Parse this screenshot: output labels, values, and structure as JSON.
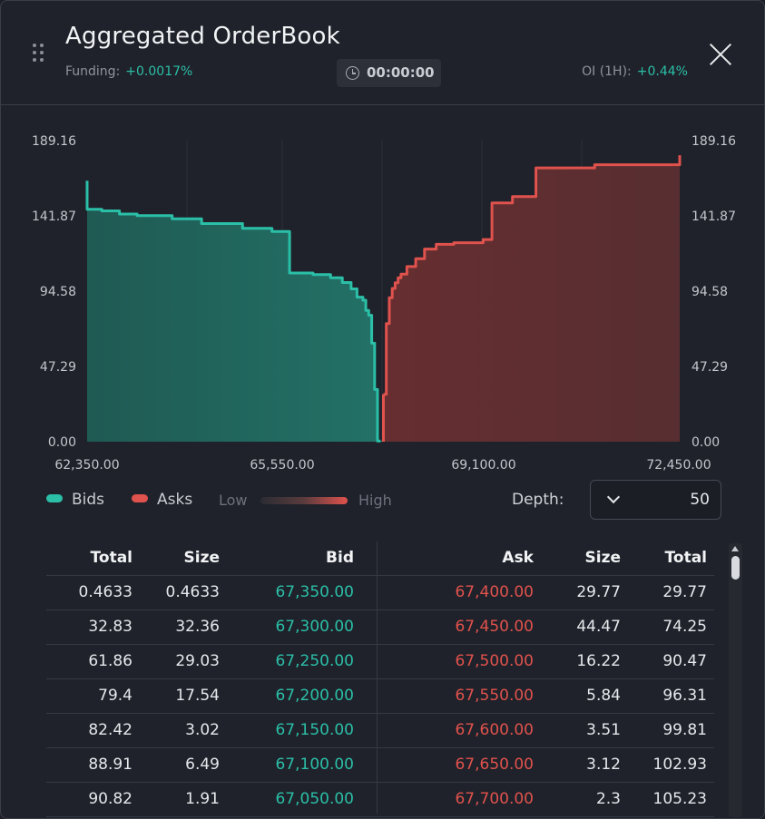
{
  "header": {
    "title": "Aggregated OrderBook",
    "funding_label": "Funding:",
    "funding_value": "+0.0017%",
    "timer": "00:00:00",
    "oi_label": "OI (1H):",
    "oi_value": "+0.44%",
    "close_icon": "close-icon",
    "drag_icon": "drag-handle-icon"
  },
  "colors": {
    "bids": "#2bbfa8",
    "asks": "#e0524d",
    "background": "#1f222a"
  },
  "chart_data": {
    "type": "area",
    "x_ticks": [
      "62,350.00",
      "65,550.00",
      "69,100.00",
      "72,450.00"
    ],
    "y_ticks": [
      "189.16",
      "141.87",
      "94.58",
      "47.29",
      "0.00"
    ],
    "xlim": [
      62350,
      72450
    ],
    "ylim": [
      0,
      189.16
    ],
    "grid": true,
    "series": [
      {
        "name": "Bids",
        "points": [
          [
            67350,
            0.4633
          ],
          [
            67300,
            32.83
          ],
          [
            67250,
            61.86
          ],
          [
            67200,
            79.4
          ],
          [
            67150,
            82.42
          ],
          [
            67100,
            88.91
          ],
          [
            67050,
            90.82
          ],
          [
            66950,
            96
          ],
          [
            66850,
            100
          ],
          [
            66700,
            103
          ],
          [
            66500,
            105
          ],
          [
            66200,
            106
          ],
          [
            65800,
            107
          ],
          [
            65800,
            132
          ],
          [
            65500,
            134
          ],
          [
            65000,
            137
          ],
          [
            64300,
            140
          ],
          [
            63800,
            142
          ],
          [
            63200,
            143
          ],
          [
            62900,
            145
          ],
          [
            62600,
            146
          ],
          [
            62350,
            164
          ]
        ]
      },
      {
        "name": "Asks",
        "points": [
          [
            67400,
            29.77
          ],
          [
            67450,
            74.25
          ],
          [
            67500,
            90.47
          ],
          [
            67550,
            96.31
          ],
          [
            67600,
            99.81
          ],
          [
            67650,
            102.93
          ],
          [
            67700,
            105.23
          ],
          [
            67800,
            110
          ],
          [
            67950,
            115
          ],
          [
            68100,
            121
          ],
          [
            68300,
            124
          ],
          [
            68600,
            125
          ],
          [
            69100,
            127
          ],
          [
            69250,
            128
          ],
          [
            69250,
            150
          ],
          [
            69600,
            154
          ],
          [
            70000,
            156
          ],
          [
            70000,
            172
          ],
          [
            71000,
            174
          ],
          [
            72450,
            180
          ]
        ]
      }
    ]
  },
  "legend": {
    "bids": "Bids",
    "asks": "Asks",
    "low": "Low",
    "high": "High",
    "depth_label": "Depth:",
    "depth_value": "50"
  },
  "table": {
    "headers": [
      "Total",
      "Size",
      "Bid",
      "Ask",
      "Size",
      "Total"
    ],
    "rows": [
      [
        "0.4633",
        "0.4633",
        "67,350.00",
        "67,400.00",
        "29.77",
        "29.77"
      ],
      [
        "32.83",
        "32.36",
        "67,300.00",
        "67,450.00",
        "44.47",
        "74.25"
      ],
      [
        "61.86",
        "29.03",
        "67,250.00",
        "67,500.00",
        "16.22",
        "90.47"
      ],
      [
        "79.4",
        "17.54",
        "67,200.00",
        "67,550.00",
        "5.84",
        "96.31"
      ],
      [
        "82.42",
        "3.02",
        "67,150.00",
        "67,600.00",
        "3.51",
        "99.81"
      ],
      [
        "88.91",
        "6.49",
        "67,100.00",
        "67,650.00",
        "3.12",
        "102.93"
      ],
      [
        "90.82",
        "1.91",
        "67,050.00",
        "67,700.00",
        "2.3",
        "105.23"
      ]
    ]
  }
}
